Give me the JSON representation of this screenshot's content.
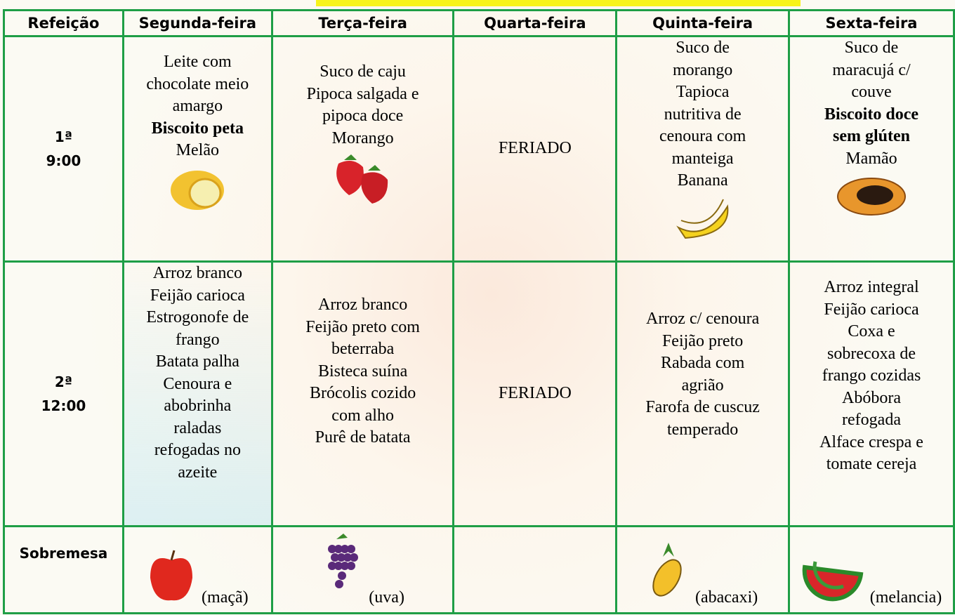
{
  "table": {
    "headers": [
      "Refeição",
      "Segunda-feira",
      "Terça-feira",
      "Quarta-feira",
      "Quinta-feira",
      "Sexta-feira"
    ],
    "rows": [
      {
        "label": [
          "1ª",
          "9:00"
        ],
        "cells": [
          [
            {
              "text": "Leite com"
            },
            {
              "text": "chocolate meio"
            },
            {
              "text": "amargo"
            },
            {
              "text": "Biscoito peta",
              "bold": true
            },
            {
              "text": "Melão"
            }
          ],
          [
            {
              "text": "Suco de caju"
            },
            {
              "text": "Pipoca salgada e"
            },
            {
              "text": "pipoca doce"
            },
            {
              "text": "Morango"
            }
          ],
          [
            {
              "text": "FERIADO"
            }
          ],
          [
            {
              "text": "Suco de"
            },
            {
              "text": "morango"
            },
            {
              "text": "Tapioca"
            },
            {
              "text": "nutritiva de"
            },
            {
              "text": "cenoura com"
            },
            {
              "text": "manteiga"
            },
            {
              "text": "Banana"
            }
          ],
          [
            {
              "text": "Suco de"
            },
            {
              "text": "maracujá c/"
            },
            {
              "text": "couve"
            },
            {
              "text": "Biscoito doce",
              "bold": true
            },
            {
              "text": "sem glúten",
              "bold": true
            },
            {
              "text": "Mamão"
            }
          ]
        ]
      },
      {
        "label": [
          "2ª",
          "12:00"
        ],
        "cells": [
          [
            {
              "text": "Arroz branco"
            },
            {
              "text": "Feijão carioca"
            },
            {
              "text": "Estrogonofe de"
            },
            {
              "text": "frango"
            },
            {
              "text": "Batata palha"
            },
            {
              "text": "Cenoura e"
            },
            {
              "text": "abobrinha"
            },
            {
              "text": "raladas"
            },
            {
              "text": "refogadas no"
            },
            {
              "text": "azeite"
            }
          ],
          [
            {
              "text": "Arroz branco"
            },
            {
              "text": "Feijão preto com"
            },
            {
              "text": "beterraba"
            },
            {
              "text": "Bisteca suína"
            },
            {
              "text": "Brócolis cozido"
            },
            {
              "text": "com alho"
            },
            {
              "text": "Purê de batata"
            }
          ],
          [
            {
              "text": "FERIADO"
            }
          ],
          [
            {
              "text": "Arroz c/ cenoura"
            },
            {
              "text": "Feijão preto"
            },
            {
              "text": "Rabada com"
            },
            {
              "text": "agrião"
            },
            {
              "text": "Farofa de cuscuz"
            },
            {
              "text": "temperado"
            }
          ],
          [
            {
              "text": "Arroz integral"
            },
            {
              "text": "Feijão carioca"
            },
            {
              "text": "Coxa e"
            },
            {
              "text": "sobrecoxa de"
            },
            {
              "text": "frango cozidas"
            },
            {
              "text": "Abóbora"
            },
            {
              "text": "refogada"
            },
            {
              "text": "Alface crespa e"
            },
            {
              "text": "tomate cereja"
            }
          ]
        ]
      },
      {
        "label": [
          "Sobremesa"
        ],
        "cells": [
          [
            {
              "text": "(maçã)"
            }
          ],
          [
            {
              "text": "(uva)"
            }
          ],
          [],
          [
            {
              "text": "(abacaxi)"
            }
          ],
          [
            {
              "text": "(melancia)"
            }
          ]
        ]
      }
    ]
  }
}
